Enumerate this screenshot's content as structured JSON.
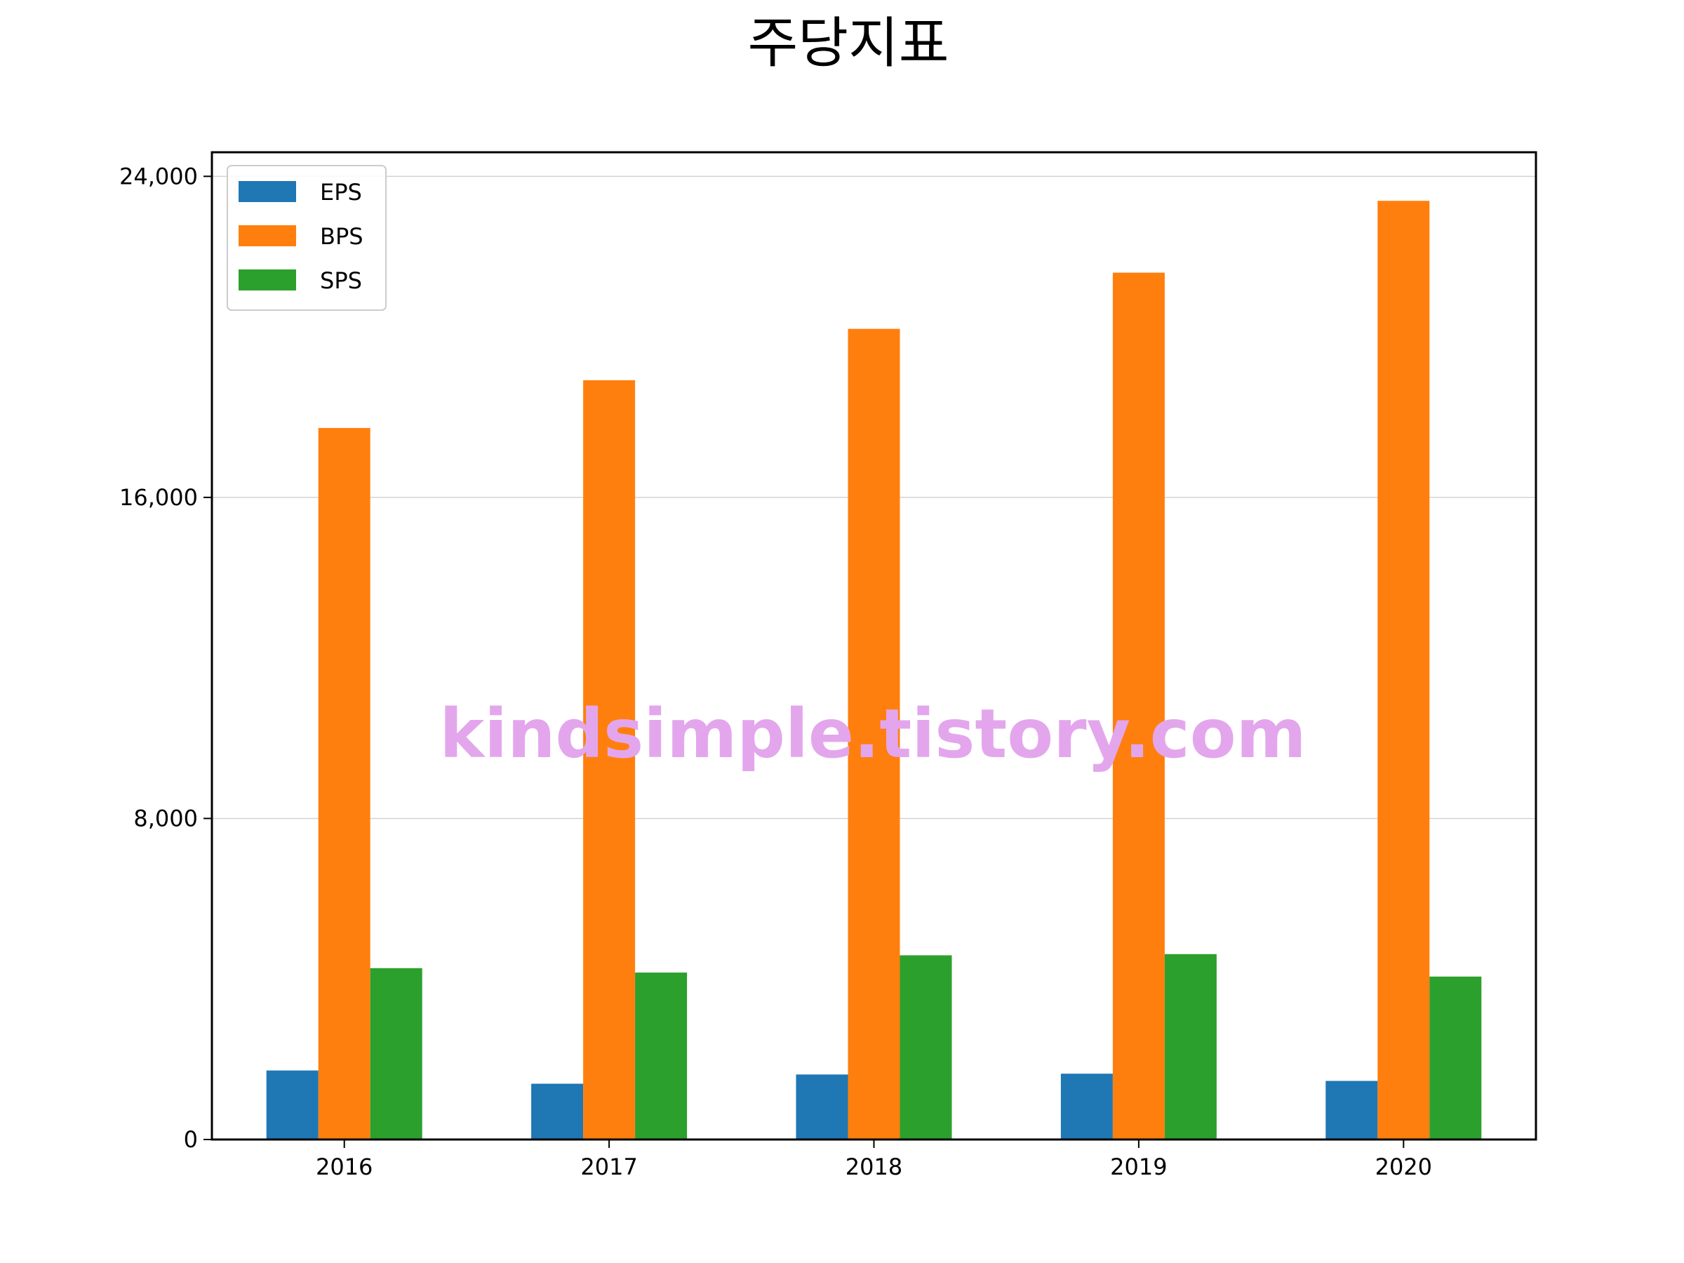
{
  "chart_data": {
    "type": "bar",
    "title": "주당지표",
    "xlabel": "",
    "ylabel": "",
    "categories": [
      "2016",
      "2017",
      "2018",
      "2019",
      "2020"
    ],
    "series": [
      {
        "name": "EPS",
        "color": "#1f77b4",
        "values": [
          1720,
          1390,
          1620,
          1640,
          1460
        ]
      },
      {
        "name": "BPS",
        "color": "#ff7f0e",
        "values": [
          17730,
          18920,
          20200,
          21600,
          23390
        ]
      },
      {
        "name": "SPS",
        "color": "#2ca02c",
        "values": [
          4270,
          4160,
          4590,
          4620,
          4060
        ]
      }
    ],
    "ylim": [
      0,
      24600
    ],
    "yticks": [
      0,
      8000,
      16000,
      24000
    ],
    "ytick_labels": [
      "0",
      "8,000",
      "16,000",
      "24,000"
    ],
    "grid": "y-major",
    "legend": "upper-left"
  },
  "watermark": "kindsimple.tistory.com",
  "colors": {
    "watermark": "#e3a6ec",
    "grid": "#d3d3d3",
    "axes": "#000000"
  }
}
